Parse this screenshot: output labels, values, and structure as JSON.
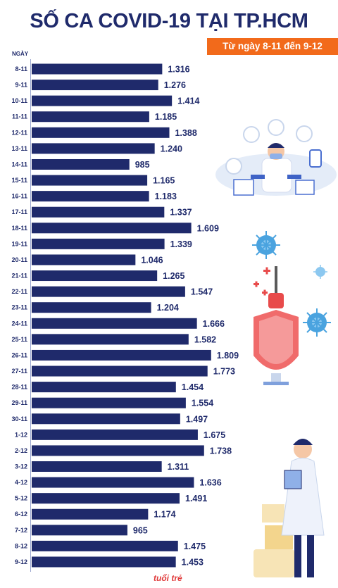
{
  "title": "SỐ CA COVID-19 TẠI TP.HCM",
  "subtitle": "Từ ngày 8-11 đến 9-12",
  "logo_text": "tuổi trẻ",
  "colors": {
    "bar": "#1f2a6b",
    "accent": "#f26a1b",
    "text": "#1f2a6b"
  },
  "chart_data": {
    "type": "bar",
    "orientation": "horizontal",
    "title": "SỐ CA COVID-19 TẠI TP.HCM",
    "subtitle": "Từ ngày 8-11 đến 9-12",
    "xlabel": "",
    "ylabel": "NGÀY",
    "categories": [
      "8-11",
      "9-11",
      "10-11",
      "11-11",
      "12-11",
      "13-11",
      "14-11",
      "15-11",
      "16-11",
      "17-11",
      "18-11",
      "19-11",
      "20-11",
      "21-11",
      "22-11",
      "23-11",
      "24-11",
      "25-11",
      "26-11",
      "27-11",
      "28-11",
      "29-11",
      "30-11",
      "1-12",
      "2-12",
      "3-12",
      "4-12",
      "5-12",
      "6-12",
      "7-12",
      "8-12",
      "9-12"
    ],
    "values": [
      1316,
      1276,
      1414,
      1185,
      1388,
      1240,
      985,
      1165,
      1183,
      1337,
      1609,
      1339,
      1046,
      1265,
      1547,
      1204,
      1666,
      1582,
      1809,
      1773,
      1454,
      1554,
      1497,
      1675,
      1738,
      1311,
      1636,
      1491,
      1174,
      965,
      1475,
      1453
    ],
    "value_labels": [
      "1.316",
      "1.276",
      "1.414",
      "1.185",
      "1.388",
      "1.240",
      "985",
      "1.165",
      "1.183",
      "1.337",
      "1.609",
      "1.339",
      "1.046",
      "1.265",
      "1.547",
      "1.204",
      "1.666",
      "1.582",
      "1.809",
      "1.773",
      "1.454",
      "1.554",
      "1.497",
      "1.675",
      "1.738",
      "1.311",
      "1.636",
      "1.491",
      "1.174",
      "965",
      "1.475",
      "1.453"
    ],
    "grid": false,
    "legend": "none"
  }
}
